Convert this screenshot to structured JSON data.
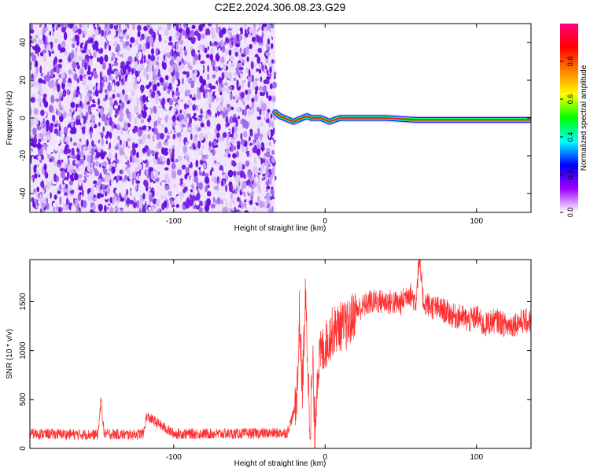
{
  "title": "C2E2.2024.306.08.23.G29",
  "chart_data": [
    {
      "type": "heatmap",
      "xlabel": "Height of straight line (km)",
      "ylabel": "Frequency (Hz)",
      "xlim": [
        -195,
        136
      ],
      "ylim": [
        -50,
        50
      ],
      "x_ticks": [
        -100,
        0,
        100
      ],
      "x_tick_labels": [
        "-100",
        "0",
        "100"
      ],
      "y_ticks": [
        -40,
        -20,
        0,
        20,
        40
      ],
      "y_tick_labels": [
        "-40",
        "-20",
        "0",
        "20",
        "40"
      ],
      "noise_region_x": [
        -195,
        -33
      ],
      "noise_color": "#7a22e8",
      "signal_track": {
        "x": [
          -33,
          -30,
          -27,
          -24,
          -21,
          -18,
          -15,
          -12,
          -9,
          -6,
          -3,
          0,
          3,
          6,
          10,
          20,
          40,
          60,
          80,
          100,
          120,
          136
        ],
        "y": [
          3,
          1,
          0,
          -1,
          -2,
          -1,
          0,
          1,
          0,
          0,
          0,
          -1,
          -2,
          -1,
          0,
          0,
          0,
          -1,
          -1,
          -1,
          -1,
          -1
        ]
      },
      "colorbar": {
        "label": "Normalized spectral amplitude",
        "range": [
          0,
          1
        ],
        "ticks": [
          0,
          0.2,
          0.4,
          0.6,
          0.8
        ],
        "tick_labels": [
          "0.0",
          "0.2",
          "0.4",
          "0.6",
          "0.8"
        ],
        "colors": [
          "#ffffff",
          "#a000ff",
          "#0000ff",
          "#00ffff",
          "#00ff00",
          "#ffff00",
          "#ff8000",
          "#ff0000",
          "#ff0080"
        ]
      },
      "grid": false
    },
    {
      "type": "line",
      "xlabel": "Height of straight line (km)",
      "ylabel": "SNR (10 * v/v)",
      "xlim": [
        -195,
        136
      ],
      "ylim": [
        0,
        1930
      ],
      "x_ticks": [
        -100,
        0,
        100
      ],
      "x_tick_labels": [
        "-100",
        "0",
        "100"
      ],
      "y_ticks": [
        0,
        500,
        1000,
        1500
      ],
      "y_tick_labels": [
        "0",
        "500",
        "1000",
        "1500"
      ],
      "line_color": "#ff3030",
      "series": [
        {
          "x": [
            -195,
            -170,
            -150,
            -148,
            -146,
            -130,
            -120,
            -118,
            -100,
            -80,
            -60,
            -40,
            -25,
            -20,
            -18,
            -17,
            -15,
            -13,
            -10,
            -8,
            -7,
            -5,
            -3,
            0,
            5,
            10,
            15,
            20,
            25,
            30,
            40,
            50,
            55,
            60,
            62,
            65,
            70,
            80,
            85,
            90,
            95,
            100,
            105,
            110,
            115,
            120,
            130,
            136
          ],
          "y": [
            150,
            145,
            140,
            500,
            150,
            140,
            150,
            330,
            150,
            150,
            150,
            155,
            160,
            400,
            700,
            1380,
            600,
            1550,
            200,
            900,
            100,
            800,
            950,
            1050,
            1200,
            1250,
            1250,
            1400,
            1450,
            1500,
            1500,
            1480,
            1600,
            1500,
            1930,
            1500,
            1450,
            1400,
            1350,
            1350,
            1300,
            1350,
            1250,
            1300,
            1300,
            1250,
            1300,
            1300
          ]
        }
      ],
      "grid": false
    }
  ]
}
